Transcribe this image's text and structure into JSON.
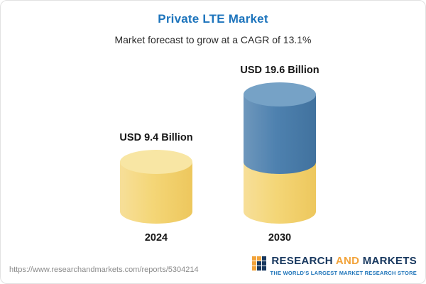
{
  "header": {
    "title": "Private LTE Market",
    "subtitle": "Market forecast to grow at a CAGR of 13.1%"
  },
  "chart_data": {
    "type": "bar",
    "variant": "3d-cylinder",
    "categories": [
      "2024",
      "2030"
    ],
    "values": [
      9.4,
      19.6
    ],
    "value_labels": [
      "USD 9.4 Billion",
      "USD 19.6 Billion"
    ],
    "unit": "USD Billion",
    "title": "Private LTE Market",
    "subtitle": "Market forecast to grow at a CAGR of 13.1%",
    "cagr_percent": 13.1,
    "ylim": [
      0,
      19.6
    ],
    "grid": false,
    "legend": false,
    "colors": {
      "base_segment": "#F4D677",
      "growth_segment": "#4E81AF",
      "base_top": "#F8E6A4",
      "growth_top": "#76A2C6",
      "title_accent": "#1D74BC"
    },
    "stacking_note": "2030 bar shows 2024 base value in yellow with growth portion in blue"
  },
  "footer": {
    "url": "https://www.researchandmarkets.com/reports/5304214",
    "logo": {
      "word1": "RESEARCH",
      "word2": "AND",
      "word3": "MARKETS",
      "tagline": "THE WORLD'S LARGEST MARKET RESEARCH STORE"
    }
  }
}
